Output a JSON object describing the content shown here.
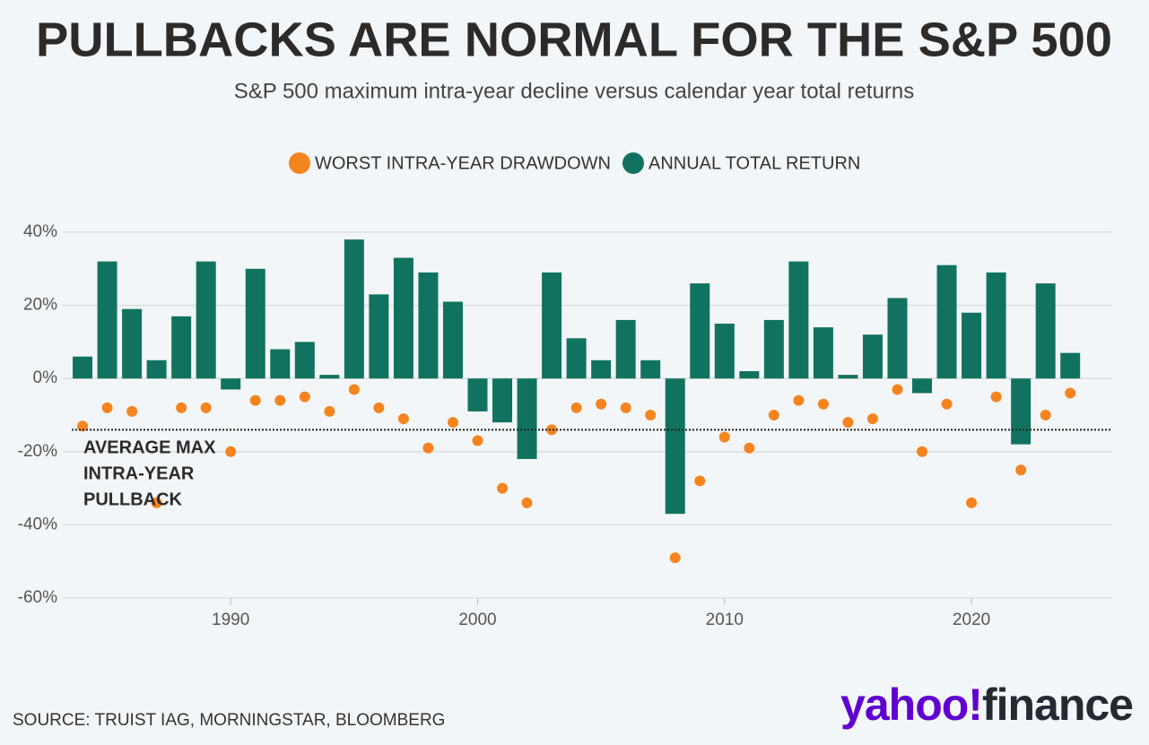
{
  "chart_data": {
    "type": "bar-scatter",
    "title": "PULLBACKS ARE NORMAL FOR THE S&P 500",
    "subtitle": "S&P 500 maximum intra-year decline versus calendar year total returns",
    "x": [
      1984,
      1985,
      1986,
      1987,
      1988,
      1989,
      1990,
      1991,
      1992,
      1993,
      1994,
      1995,
      1996,
      1997,
      1998,
      1999,
      2000,
      2001,
      2002,
      2003,
      2004,
      2005,
      2006,
      2007,
      2008,
      2009,
      2010,
      2011,
      2012,
      2013,
      2014,
      2015,
      2016,
      2017,
      2018,
      2019,
      2020,
      2021,
      2022,
      2023,
      2024
    ],
    "series": [
      {
        "name": "WORST INTRA-YEAR DRAWDOWN",
        "kind": "scatter",
        "color": "#f5841f",
        "values": [
          -13,
          -8,
          -9,
          -34,
          -8,
          -8,
          -20,
          -6,
          -6,
          -5,
          -9,
          -3,
          -8,
          -11,
          -19,
          -12,
          -17,
          -30,
          -34,
          -14,
          -8,
          -7,
          -8,
          -10,
          -49,
          -28,
          -16,
          -19,
          -10,
          -6,
          -7,
          -12,
          -11,
          -3,
          -20,
          -7,
          -34,
          -5,
          -25,
          -10,
          -4
        ]
      },
      {
        "name": "ANNUAL TOTAL RETURN",
        "kind": "bar",
        "color": "#11735f",
        "values": [
          6,
          32,
          19,
          5,
          17,
          32,
          -3,
          30,
          8,
          10,
          1,
          38,
          23,
          33,
          29,
          21,
          -9,
          -12,
          -22,
          29,
          11,
          5,
          16,
          5,
          -37,
          26,
          15,
          2,
          16,
          32,
          14,
          1,
          12,
          22,
          -4,
          31,
          18,
          29,
          -18,
          26,
          7
        ]
      }
    ],
    "annotation": {
      "lines": [
        "AVERAGE MAX",
        "INTRA-YEAR",
        "PULLBACK"
      ],
      "value": -14
    },
    "xlim": [
      1983.2,
      2025.7
    ],
    "xticks": [
      1990,
      2000,
      2010,
      2020
    ],
    "ylim": [
      -60,
      40
    ],
    "yticks": [
      {
        "value": 40,
        "label": "40%"
      },
      {
        "value": 20,
        "label": "20%"
      },
      {
        "value": 0,
        "label": "0%"
      },
      {
        "value": -20,
        "label": "-20%"
      },
      {
        "value": -40,
        "label": "-40%"
      },
      {
        "value": -60,
        "label": "-60%"
      }
    ],
    "grid": true,
    "source": "SOURCE: TRUIST IAG, MORNINGSTAR, BLOOMBERG",
    "logo": [
      "yahoo!",
      "finance"
    ]
  }
}
